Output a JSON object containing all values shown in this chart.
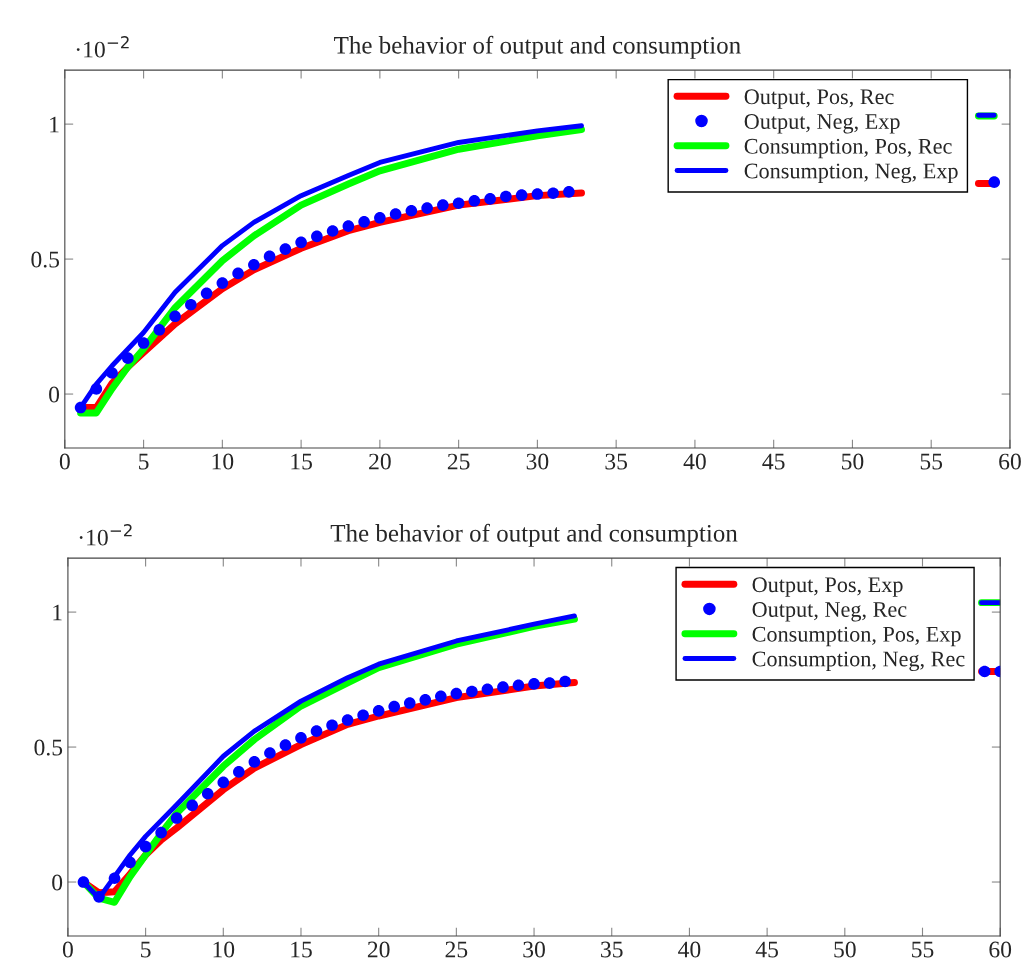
{
  "chart_data": [
    {
      "type": "line",
      "title": "The behavior of output and consumption",
      "annotations": [
        "·10$^{−2}$"
      ],
      "xlim": [
        0,
        60
      ],
      "ylim": [
        -0.2,
        1.2
      ],
      "xticks": [
        0,
        5,
        10,
        15,
        20,
        25,
        30,
        35,
        40,
        45,
        50,
        55,
        60
      ],
      "yticks": [
        0,
        0.5,
        1
      ],
      "legend": "top right",
      "grid": false,
      "series": [
        {
          "name": "Output, Pos, Rec",
          "color": "#ff0000",
          "type": "line",
          "marker": "none",
          "x": [
            1,
            2,
            3,
            4,
            5,
            7,
            10,
            12,
            15,
            18,
            20,
            25,
            30,
            32.8,
            45,
            58,
            59
          ],
          "values": [
            -0.05,
            -0.05,
            0.04,
            0.1,
            0.154,
            0.26,
            0.39,
            0.46,
            0.54,
            0.605,
            0.636,
            0.7,
            0.735,
            0.745,
            null,
            0.78,
            0.78
          ]
        },
        {
          "name": "Output, Neg, Exp",
          "color": "#0000ff",
          "type": "scatter",
          "marker": "circle",
          "x": [
            1,
            2,
            3,
            4,
            5,
            6,
            7,
            8,
            9,
            10,
            11,
            12,
            13,
            14,
            15,
            16,
            17,
            18,
            19,
            20,
            21,
            22,
            23,
            24,
            25,
            26,
            27,
            28,
            29,
            30,
            31,
            32,
            59
          ],
          "values": [
            -0.05,
            0.019,
            0.078,
            0.133,
            0.189,
            0.238,
            0.288,
            0.331,
            0.373,
            0.411,
            0.447,
            0.479,
            0.51,
            0.537,
            0.562,
            0.584,
            0.604,
            0.622,
            0.638,
            0.653,
            0.667,
            0.679,
            0.689,
            0.7,
            0.707,
            0.716,
            0.723,
            0.732,
            0.737,
            0.741,
            0.744,
            0.749,
            0.785
          ]
        },
        {
          "name": "Consumption, Pos, Rec",
          "color": "#00ff00",
          "type": "line",
          "marker": "none",
          "x": [
            1,
            2,
            3,
            4,
            5,
            7,
            10,
            12,
            15,
            18,
            20,
            25,
            30,
            32.8,
            45,
            58,
            59
          ],
          "values": [
            -0.07,
            -0.07,
            0.02,
            0.1,
            0.167,
            0.32,
            0.494,
            0.586,
            0.7,
            0.778,
            0.827,
            0.907,
            0.957,
            0.98,
            null,
            1.03,
            1.03
          ]
        },
        {
          "name": "Consumption, Neg, Exp",
          "color": "#0000ff",
          "type": "line",
          "marker": "none",
          "x": [
            1,
            2,
            3,
            5,
            7,
            10,
            12,
            15,
            18,
            20,
            25,
            30,
            32.8,
            45,
            58,
            59
          ],
          "values": [
            -0.05,
            0.037,
            0.105,
            0.228,
            0.377,
            0.55,
            0.636,
            0.735,
            0.81,
            0.858,
            0.932,
            0.975,
            0.994,
            null,
            1.033,
            1.033
          ]
        }
      ]
    },
    {
      "type": "line",
      "title": "The behavior of output and consumption",
      "annotations": [
        "·10$^{−2}$"
      ],
      "xlim": [
        0,
        60
      ],
      "ylim": [
        -0.2,
        1.2
      ],
      "xticks": [
        0,
        5,
        10,
        15,
        20,
        25,
        30,
        35,
        40,
        45,
        50,
        55,
        60
      ],
      "yticks": [
        0,
        0.5,
        1
      ],
      "legend": "top right",
      "grid": false,
      "series": [
        {
          "name": "Output, Pos, Exp",
          "color": "#ff0000",
          "type": "line",
          "marker": "none",
          "x": [
            1,
            2,
            3,
            4,
            5,
            6,
            7,
            10,
            12,
            15,
            18,
            20,
            25,
            30,
            32.6,
            45,
            58.8,
            60
          ],
          "values": [
            0,
            -0.04,
            -0.036,
            0.03,
            0.1,
            0.156,
            0.2,
            0.342,
            0.422,
            0.509,
            0.584,
            0.615,
            0.683,
            0.726,
            0.739,
            null,
            0.78,
            0.78
          ]
        },
        {
          "name": "Output, Neg, Rec",
          "color": "#0000ff",
          "type": "scatter",
          "marker": "circle",
          "x": [
            1,
            2,
            3,
            4,
            5,
            6,
            7,
            8,
            9,
            10,
            11,
            12,
            13,
            14,
            15,
            16,
            17,
            18,
            19,
            20,
            21,
            22,
            23,
            24,
            25,
            26,
            27,
            28,
            29,
            30,
            31,
            32,
            59,
            60
          ],
          "values": [
            0,
            -0.055,
            0.014,
            0.073,
            0.131,
            0.183,
            0.237,
            0.284,
            0.327,
            0.369,
            0.408,
            0.445,
            0.478,
            0.507,
            0.534,
            0.559,
            0.581,
            0.6,
            0.618,
            0.634,
            0.65,
            0.663,
            0.675,
            0.688,
            0.698,
            0.706,
            0.714,
            0.722,
            0.729,
            0.734,
            0.737,
            0.743,
            0.78,
            0.78
          ]
        },
        {
          "name": "Consumption, Pos, Exp",
          "color": "#00ff00",
          "type": "line",
          "marker": "none",
          "x": [
            1,
            2,
            3,
            4,
            5,
            6,
            7,
            10,
            12,
            15,
            18,
            20,
            25,
            30,
            32.6,
            45,
            58.8,
            60
          ],
          "values": [
            0,
            -0.06,
            -0.075,
            0.02,
            0.1,
            0.18,
            0.255,
            0.429,
            0.528,
            0.652,
            0.738,
            0.794,
            0.881,
            0.947,
            0.974,
            null,
            1.035,
            1.035
          ]
        },
        {
          "name": "Consumption, Neg, Rec",
          "color": "#0000ff",
          "type": "line",
          "marker": "none",
          "x": [
            1,
            2,
            3,
            4,
            5,
            7,
            10,
            12,
            15,
            18,
            20,
            25,
            30,
            32.6,
            45,
            58.8,
            60
          ],
          "values": [
            0,
            -0.06,
            0.02,
            0.1,
            0.169,
            0.286,
            0.466,
            0.559,
            0.67,
            0.757,
            0.807,
            0.893,
            0.955,
            0.986,
            null,
            1.035,
            1.035
          ]
        }
      ]
    }
  ]
}
